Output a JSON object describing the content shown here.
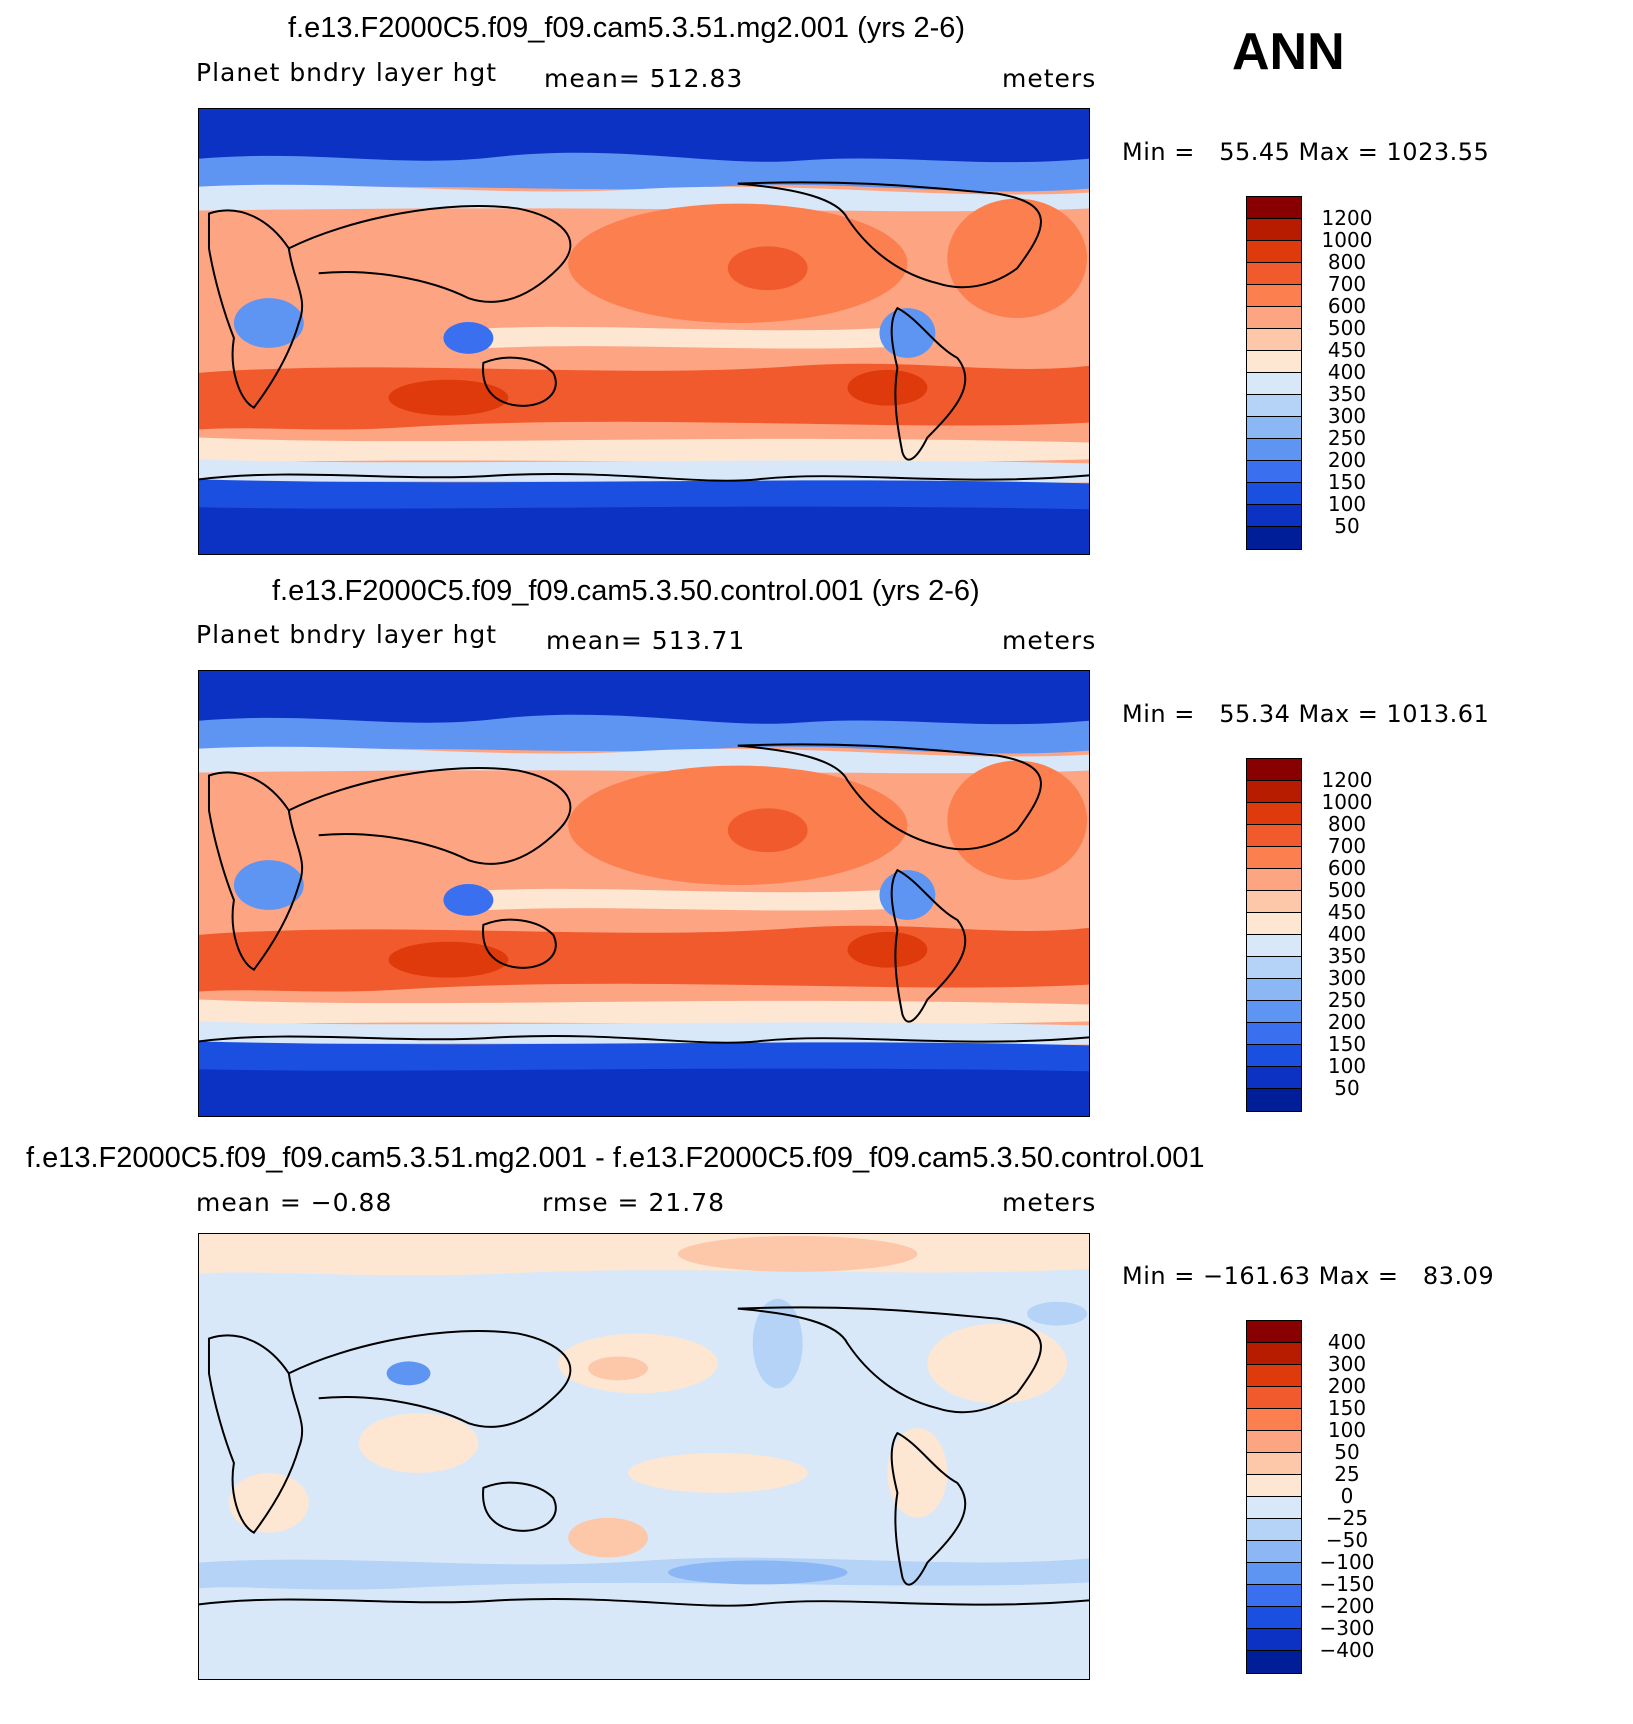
{
  "season": "ANN",
  "panels": [
    {
      "title": "f.e13.F2000C5.f09_f09.cam5.3.51.mg2.001 (yrs 2-6)",
      "left_label": "Planet bndry layer hgt",
      "center_label": "mean= 512.83",
      "units": "meters",
      "minmax": "Min =   55.45 Max = 1023.55",
      "colorbar_labels": [
        "1200",
        "1000",
        "800",
        "700",
        "600",
        "500",
        "450",
        "400",
        "350",
        "300",
        "250",
        "200",
        "150",
        "100",
        "50"
      ]
    },
    {
      "title": "f.e13.F2000C5.f09_f09.cam5.3.50.control.001 (yrs 2-6)",
      "left_label": "Planet bndry layer hgt",
      "center_label": "mean= 513.71",
      "units": "meters",
      "minmax": "Min =   55.34 Max = 1013.61",
      "colorbar_labels": [
        "1200",
        "1000",
        "800",
        "700",
        "600",
        "500",
        "450",
        "400",
        "350",
        "300",
        "250",
        "200",
        "150",
        "100",
        "50"
      ]
    },
    {
      "title": "f.e13.F2000C5.f09_f09.cam5.3.51.mg2.001 - f.e13.F2000C5.f09_f09.cam5.3.50.control.001",
      "left_label": "mean =   −0.88",
      "center_label": "rmse =   21.78",
      "units": "meters",
      "minmax": "Min = −161.63 Max =   83.09",
      "colorbar_labels": [
        "400",
        "300",
        "200",
        "150",
        "100",
        "50",
        "25",
        "0",
        "−25",
        "−50",
        "−100",
        "−150",
        "−200",
        "−300",
        "−400"
      ]
    }
  ],
  "colormap": [
    "#880000",
    "#b81c00",
    "#de3a0c",
    "#f15a2c",
    "#fb7f4f",
    "#fda483",
    "#fdc7aa",
    "#fde7d3",
    "#d8e8f8",
    "#b4d3f7",
    "#8cb7f5",
    "#5e94f2",
    "#3a6ff0",
    "#1a4fe0",
    "#0c32c4",
    "#001e98"
  ]
}
